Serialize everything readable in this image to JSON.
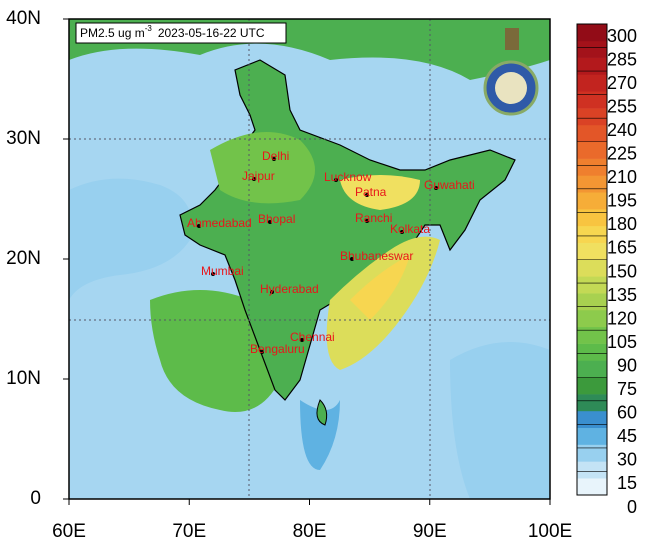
{
  "map": {
    "title": "PM2.5 ug m",
    "title_superscript": "-3",
    "date": "2023-05-16-22 UTC",
    "lat_ticks": [
      0,
      {
        "value": 10,
        "label": "10N"
      },
      {
        "value": 20,
        "label": "20N"
      },
      {
        "value": 30,
        "label": "30N"
      },
      {
        "value": 40,
        "label": "40N"
      }
    ],
    "lon_ticks": [
      {
        "value": 60,
        "label": "60E"
      },
      {
        "value": 70,
        "label": "70E"
      },
      {
        "value": 80,
        "label": "80E"
      },
      {
        "value": 90,
        "label": "90E"
      },
      {
        "value": 100,
        "label": "100E"
      }
    ],
    "latlim": [
      0,
      40
    ],
    "lonlim": [
      60,
      100
    ],
    "cities": [
      "Delhi",
      "Jaipur",
      "Lucknow",
      "Patna",
      "Guwahati",
      "Ahmedabad",
      "Bhopal",
      "Ranchi",
      "Kolkata",
      "Mumbai",
      "Bhubaneswar",
      "Hyderabad",
      "Chennai",
      "Bengaluru"
    ],
    "city_color": "#e8161b",
    "colorbar": {
      "ticks": [
        0,
        15,
        30,
        45,
        60,
        75,
        90,
        105,
        120,
        135,
        150,
        165,
        180,
        195,
        210,
        225,
        240,
        255,
        270,
        285,
        300
      ],
      "colors": [
        "#e8f4fb",
        "#c4e3f5",
        "#98d0ef",
        "#5fb2e2",
        "#3a8fcf",
        "#2e8b57",
        "#3c9a3c",
        "#4caf50",
        "#5dbb4a",
        "#72c34a",
        "#8dcb4c",
        "#a8d150",
        "#c3d955",
        "#dcdd5a",
        "#f0e060",
        "#f7d650",
        "#f8c440",
        "#f6ad38",
        "#f39633",
        "#ef7f2e",
        "#ea6a2b",
        "#e35628",
        "#da4225",
        "#cf3122",
        "#c2241f",
        "#b3191c",
        "#a3121a",
        "#920c17"
      ]
    }
  }
}
